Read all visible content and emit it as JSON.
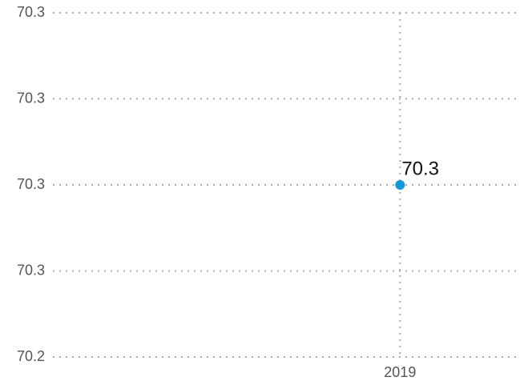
{
  "chart_data": {
    "type": "scatter",
    "categories": [
      "2019"
    ],
    "values": [
      70.28
    ],
    "value_labels": [
      "70.3"
    ],
    "color": "#0f9ad9",
    "ylim": [
      70.24,
      70.32
    ],
    "yticks": [
      {
        "value": 70.24,
        "label": "70.2"
      },
      {
        "value": 70.26,
        "label": "70.3"
      },
      {
        "value": 70.28,
        "label": "70.3"
      },
      {
        "value": 70.3,
        "label": "70.3"
      },
      {
        "value": 70.32,
        "label": "70.3"
      }
    ],
    "grid": true
  }
}
